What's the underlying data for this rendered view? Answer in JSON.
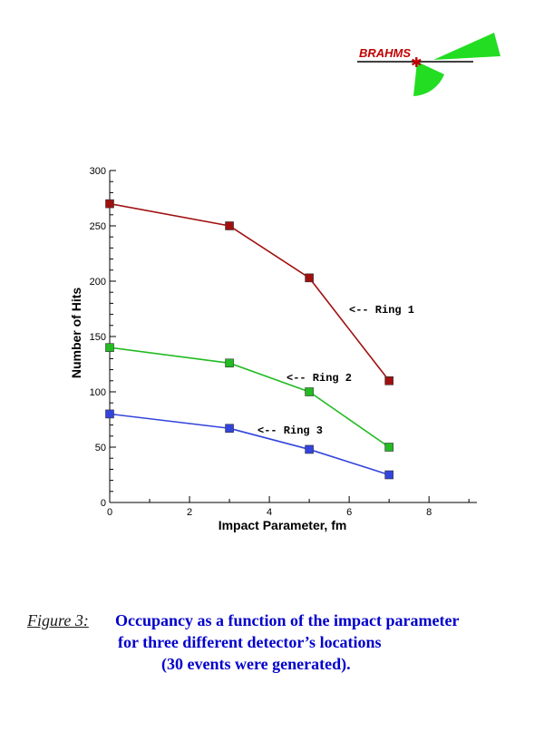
{
  "logo": {
    "text": "BRAHMS",
    "text_color": "#c00000",
    "wedge_color": "#22dd22"
  },
  "chart_data": {
    "type": "line",
    "title": "",
    "xlabel": "Impact Parameter, fm",
    "ylabel": "Number of Hits",
    "xlim": [
      0,
      9.2
    ],
    "ylim": [
      0,
      300
    ],
    "xticks": [
      0,
      2,
      4,
      6,
      8
    ],
    "yticks": [
      0,
      50,
      100,
      150,
      200,
      250,
      300
    ],
    "grid": false,
    "x": [
      0,
      3,
      5,
      7
    ],
    "series": [
      {
        "name": "Ring 1",
        "label": "<-- Ring 1",
        "color": "#a01010",
        "values": [
          270,
          250,
          203,
          110
        ]
      },
      {
        "name": "Ring 2",
        "label": "<-- Ring 2",
        "color": "#22bb22",
        "values": [
          140,
          126,
          100,
          50
        ]
      },
      {
        "name": "Ring 3",
        "label": "<-- Ring 3",
        "color": "#3344dd",
        "values": [
          80,
          67,
          48,
          25
        ]
      }
    ]
  },
  "caption": {
    "label": "Figure 3:",
    "line1": "Occupancy as a function of the impact parameter",
    "line2": "for three different detector’s locations",
    "line3": "(30 events were generated)."
  }
}
